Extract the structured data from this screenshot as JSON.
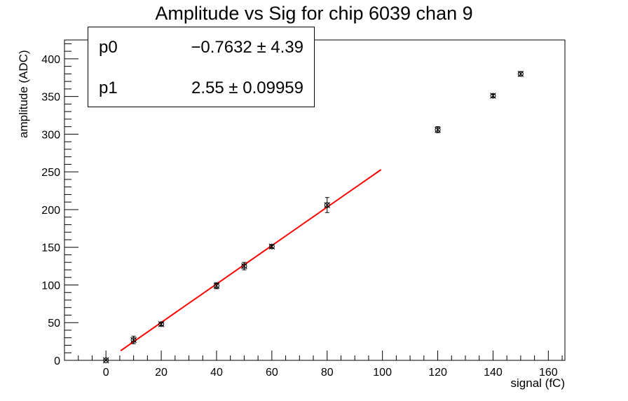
{
  "chart_data": {
    "type": "scatter",
    "title": "Amplitude vs Sig for chip 6039 chan 9",
    "xlabel": "signal (fC)",
    "ylabel": "amplitude (ADC)",
    "xlim": [
      -15,
      166
    ],
    "ylim": [
      0,
      425
    ],
    "xticks": [
      0,
      20,
      40,
      60,
      80,
      100,
      120,
      140,
      160
    ],
    "yticks": [
      0,
      50,
      100,
      150,
      200,
      250,
      300,
      350,
      400
    ],
    "grid": false,
    "series": [
      {
        "points": [
          {
            "x": 0,
            "y": 0,
            "yerr": 0
          },
          {
            "x": 10,
            "y": 27,
            "yerr": 5
          },
          {
            "x": 20,
            "y": 48,
            "yerr": 2
          },
          {
            "x": 40,
            "y": 99,
            "yerr": 4
          },
          {
            "x": 50,
            "y": 125,
            "yerr": 5
          },
          {
            "x": 60,
            "y": 151,
            "yerr": 2
          },
          {
            "x": 80,
            "y": 206,
            "yerr": 10
          },
          {
            "x": 120,
            "y": 306,
            "yerr": 4
          },
          {
            "x": 140,
            "y": 351,
            "yerr": 2
          },
          {
            "x": 150,
            "y": 380,
            "yerr": 3
          }
        ]
      }
    ],
    "fit": {
      "color": "#ff0000",
      "p0": -0.7632,
      "p1": 2.55,
      "xrange": [
        5.3,
        99.5
      ]
    },
    "stats": [
      {
        "name": "p0",
        "value": "−0.7632 ±  4.39"
      },
      {
        "name": "p1",
        "value": "2.55 ± 0.09959"
      }
    ]
  }
}
